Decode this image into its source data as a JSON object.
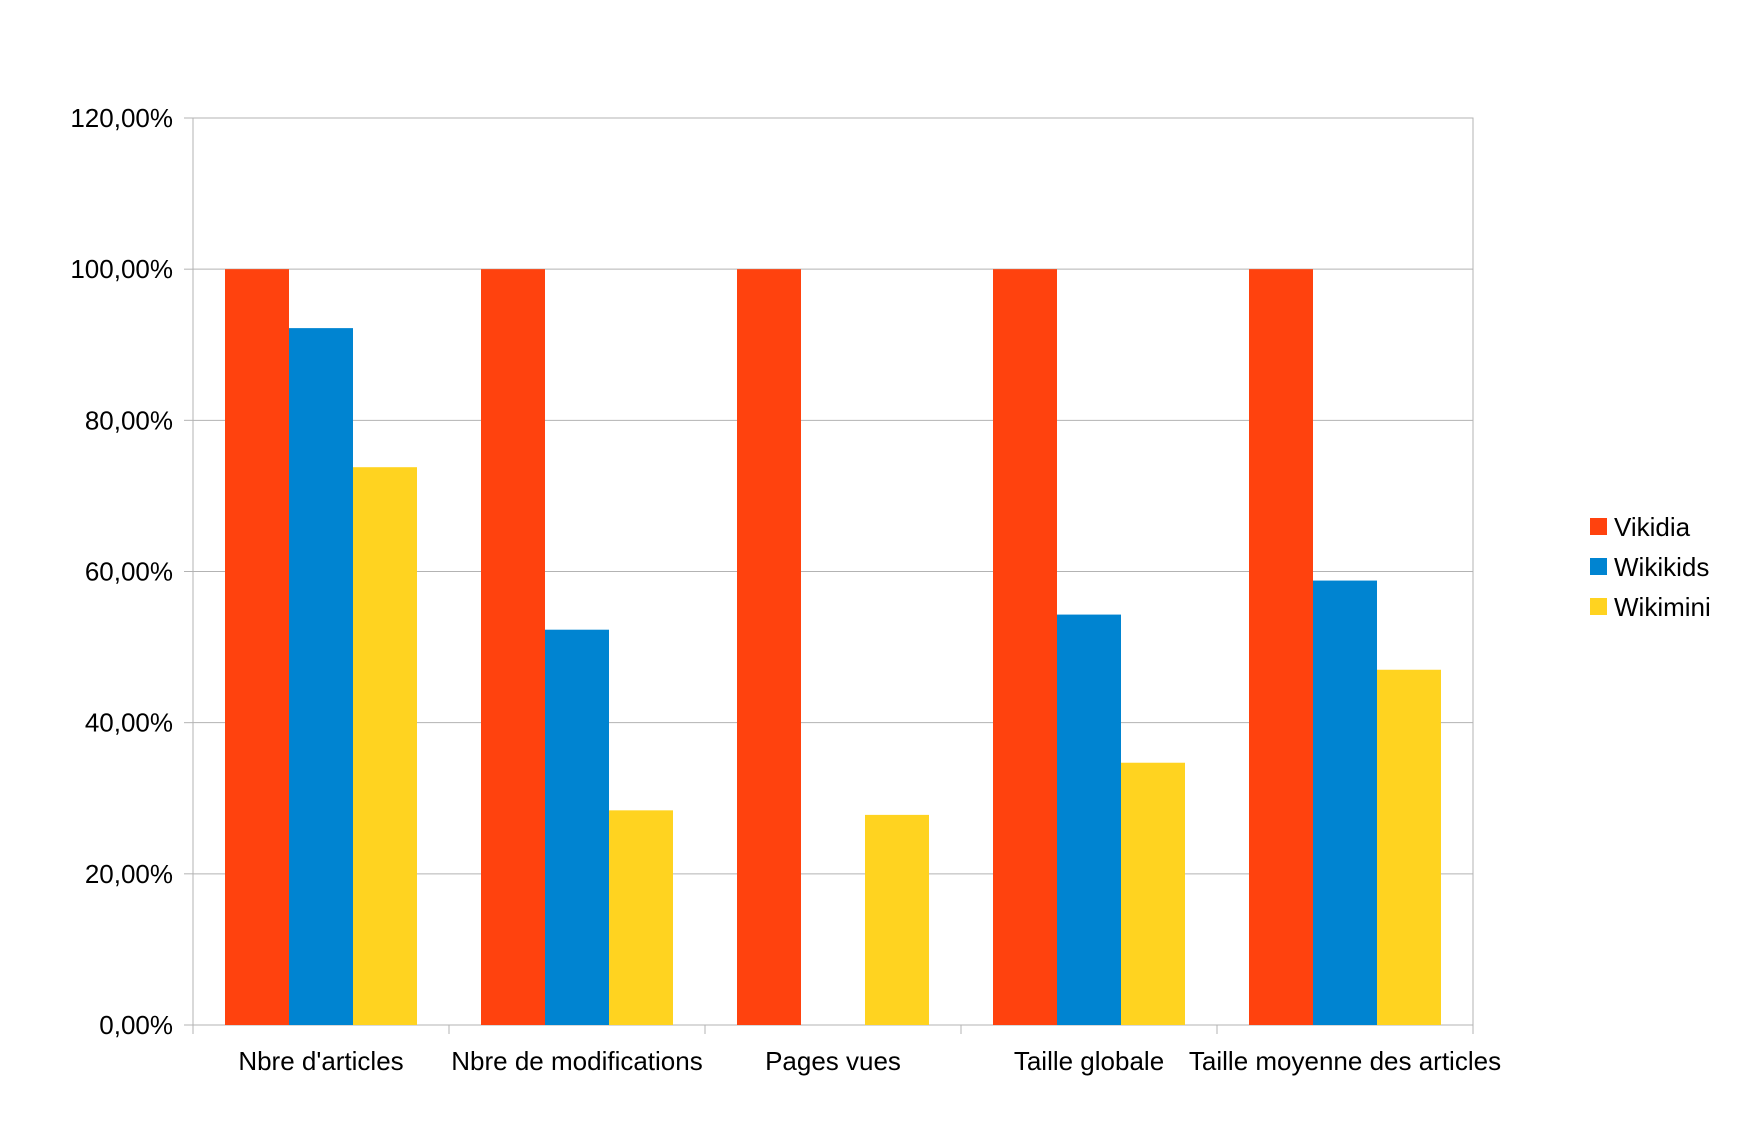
{
  "chart_data": {
    "type": "bar",
    "title": "",
    "xlabel": "",
    "ylabel": "",
    "categories": [
      "Nbre d'articles",
      "Nbre de modifications",
      "Pages vues",
      "Taille globale",
      "Taille moyenne des articles"
    ],
    "series": [
      {
        "name": "Vikidia",
        "color": "#ff420e",
        "values": [
          100,
          100,
          100,
          100,
          100
        ]
      },
      {
        "name": "Wikikids",
        "color": "#0084d1",
        "values": [
          92.2,
          52.3,
          0,
          54.3,
          58.8
        ]
      },
      {
        "name": "Wikimini",
        "color": "#ffd320",
        "values": [
          73.8,
          28.4,
          27.8,
          34.7,
          47.0
        ]
      }
    ],
    "ylim": [
      0,
      120
    ],
    "yticks": [
      0,
      20,
      40,
      60,
      80,
      100,
      120
    ],
    "ytick_labels": [
      "0,00%",
      "20,00%",
      "40,00%",
      "60,00%",
      "80,00%",
      "100,00%",
      "120,00%"
    ],
    "grid": true,
    "legend_position": "right"
  }
}
